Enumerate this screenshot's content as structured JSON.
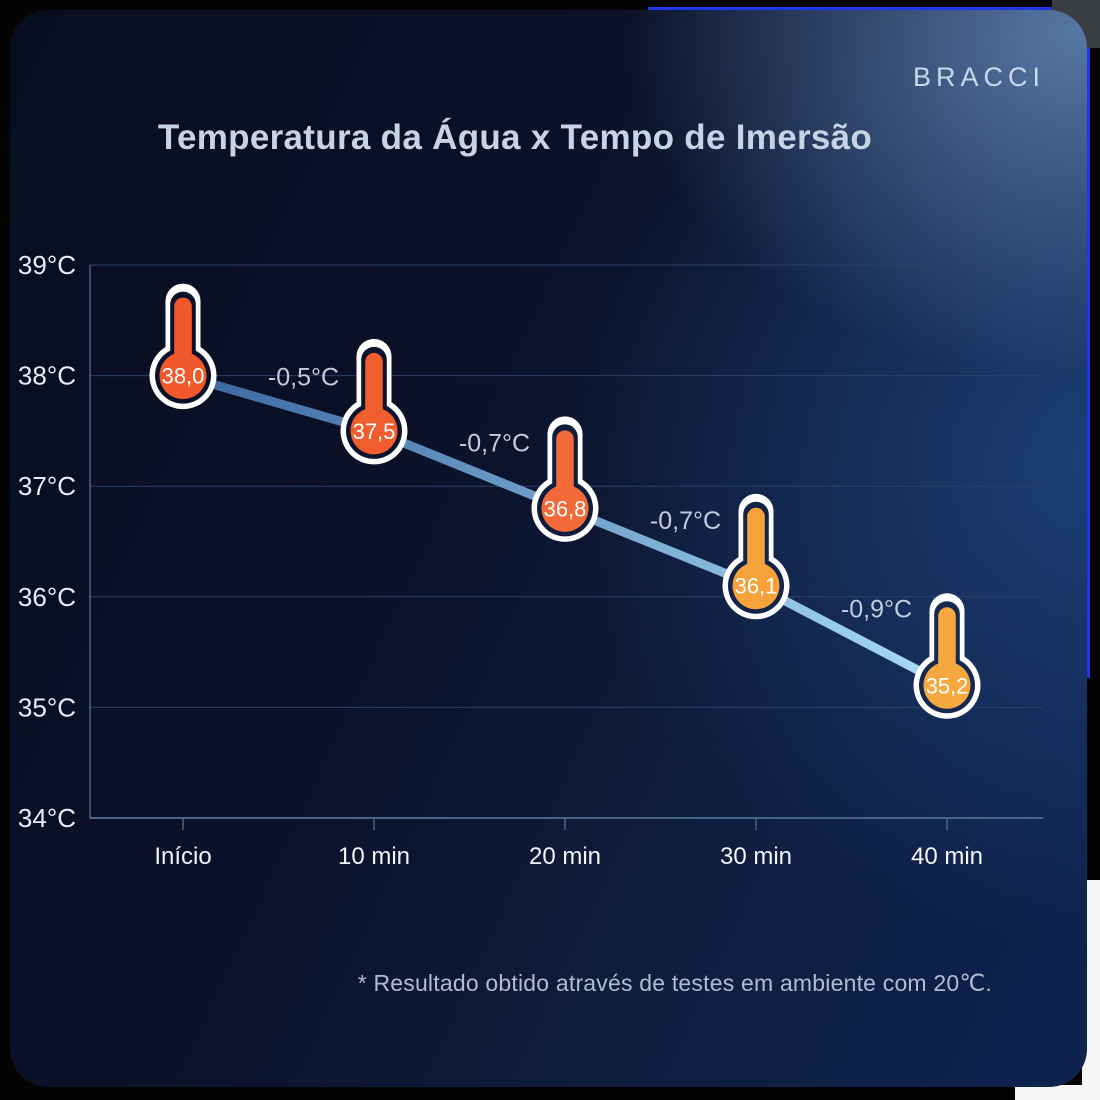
{
  "brand": {
    "logo_text": "BRACCI"
  },
  "header": {
    "title": "Temperatura da Água x Tempo de Imersão"
  },
  "footnote": {
    "text": "* Resultado obtido através de testes em ambiente com 20℃."
  },
  "chart_data": {
    "type": "line",
    "title": "Temperatura da Água x Tempo de Imersão",
    "xlabel": "",
    "ylabel": "",
    "categories": [
      "Início",
      "10 min",
      "20 min",
      "30 min",
      "40 min"
    ],
    "values": [
      38.0,
      37.5,
      36.8,
      36.1,
      35.2
    ],
    "value_labels": [
      "38,0",
      "37,5",
      "36,8",
      "36,1",
      "35,2"
    ],
    "deltas": [
      "-0,5°C",
      "-0,7°C",
      "-0,7°C",
      "-0,9°C"
    ],
    "y_tick_values": [
      39,
      38,
      37,
      36,
      35,
      34
    ],
    "y_tick_labels": [
      "39°C",
      "38°C",
      "37°C",
      "36°C",
      "35°C",
      "34°C"
    ],
    "ylim": [
      34,
      39
    ],
    "grid": true,
    "legend": "none",
    "marker_style": "thermometer",
    "point_colors": [
      "#F1582B",
      "#F15E2E",
      "#F26A38",
      "#F5A23A",
      "#F6A840"
    ],
    "marker_gap_colors": [
      "#0B1128",
      "#0C142E",
      "#0F1C3C",
      "#122347",
      "#15294E"
    ],
    "line_gradient": [
      "#3A66A0",
      "#A8DCF6"
    ]
  },
  "colors": {
    "page_background": "#040404",
    "card_background_start": "#090D20",
    "card_background_end": "#0E2250",
    "accent_edge_blue": "#1F35E8",
    "grid_line": "#2B4168",
    "axis_line": "#466488",
    "title_text": "#C7D4E6",
    "axis_text": "#E8EEF7",
    "delta_text": "#C2CDDF",
    "marker_value_text": "#FFFFFF",
    "footnote_text": "#AFBDD3",
    "logo_text": "#C9D7EA"
  }
}
